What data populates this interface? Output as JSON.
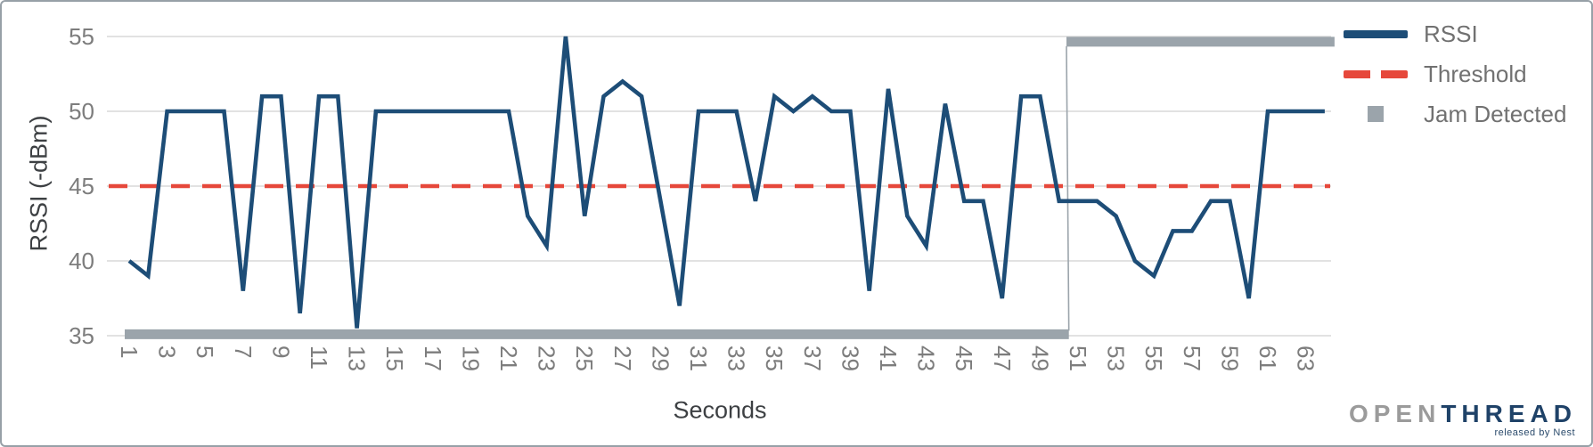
{
  "chart_data": {
    "type": "line",
    "title": "",
    "xlabel": "Seconds",
    "ylabel": "RSSI (-dBm)",
    "x_start": 1,
    "x_step": 1,
    "xlim": [
      1,
      64
    ],
    "ylim": [
      35,
      55
    ],
    "grid": "horizontal",
    "y_ticks": [
      55,
      50,
      45,
      40,
      35
    ],
    "x_ticks": [
      1,
      3,
      5,
      7,
      9,
      11,
      13,
      15,
      17,
      19,
      21,
      23,
      25,
      27,
      29,
      31,
      33,
      35,
      37,
      39,
      41,
      43,
      45,
      47,
      49,
      51,
      53,
      55,
      57,
      59,
      61,
      63
    ],
    "series": [
      {
        "name": "RSSI",
        "style": "solid",
        "color": "#1d4d77",
        "values": [
          40,
          39,
          50,
          50,
          50,
          50,
          38,
          51,
          51,
          36.5,
          51,
          51,
          35.5,
          50,
          50,
          50,
          50,
          50,
          50,
          50,
          50,
          43,
          41,
          55,
          43,
          51,
          52,
          51,
          44,
          37,
          50,
          50,
          50,
          44,
          51,
          50,
          51,
          50,
          50,
          38,
          51.5,
          43,
          41,
          50.5,
          44,
          44,
          37.5,
          51,
          51,
          44,
          44,
          44,
          43,
          40,
          39,
          42,
          42,
          44,
          44,
          37.5,
          50,
          50,
          50,
          50
        ]
      },
      {
        "name": "Threshold",
        "style": "dashed",
        "color": "#e6483b",
        "value": 45
      },
      {
        "name": "Jam Detected",
        "style": "thick-segments",
        "color": "#9ba4ab",
        "segments": [
          {
            "state": "not-detected",
            "x_start": 1,
            "x_end": 50,
            "y": 35.1
          },
          {
            "state": "detected",
            "x_start": 51,
            "x_end": 64,
            "y": 54.65
          }
        ]
      }
    ]
  },
  "legend": {
    "position": "top-right",
    "items": [
      {
        "label": "RSSI"
      },
      {
        "label": "Threshold"
      },
      {
        "label": "Jam Detected"
      }
    ]
  },
  "axis_titles": {
    "x": "Seconds",
    "y": "RSSI (-dBm)"
  },
  "logo": {
    "open": "OPEN",
    "thread": "THREAD",
    "tagline": "released by Nest"
  },
  "colors": {
    "rssi_line": "#1d4d77",
    "threshold_line": "#e6483b",
    "jam_bar": "#9ba4ab",
    "gridline": "#d9d9d9",
    "tick_text": "#7d7d7d",
    "axis_title_text": "#3d4043",
    "legend_text": "#717171",
    "frame_border": "#97a0a7"
  }
}
